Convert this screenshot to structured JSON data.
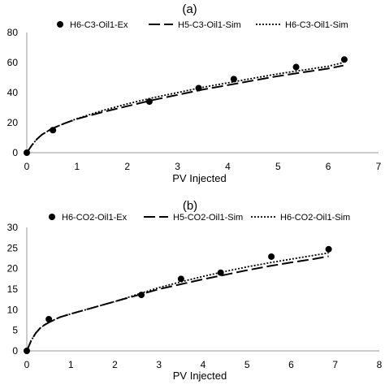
{
  "chart_data": [
    {
      "type": "scatter",
      "panel_label": "(a)",
      "xlabel": "PV Injected",
      "ylabel": "",
      "xlim": [
        0,
        7
      ],
      "ylim": [
        0,
        80
      ],
      "x_ticks": [
        0,
        1,
        2,
        3,
        4,
        5,
        6,
        7
      ],
      "y_ticks": [
        0,
        20,
        40,
        60,
        80
      ],
      "grid": false,
      "legend_position": "top",
      "series": [
        {
          "name": "H6-C3-Oil1-Ex",
          "style": "markers",
          "color": "#000000",
          "x": [
            0,
            0.52,
            2.44,
            3.42,
            4.12,
            5.36,
            6.32
          ],
          "y": [
            0,
            15,
            34,
            43,
            49,
            57,
            62
          ]
        },
        {
          "name": "H5-C3-Oil1-Sim",
          "style": "long-dash",
          "color": "#000000",
          "x": [
            0,
            0.1,
            0.2,
            0.3,
            0.4,
            0.5,
            0.75,
            1.0,
            1.5,
            2.0,
            2.5,
            3.0,
            3.5,
            4.0,
            4.5,
            5.0,
            5.5,
            6.0,
            6.3
          ],
          "y": [
            0,
            5,
            9,
            12,
            14,
            16,
            19.5,
            22.5,
            27,
            31,
            35,
            38.5,
            42,
            45,
            48,
            51,
            53.5,
            56,
            58
          ]
        },
        {
          "name": "H6-C3-Oil1-Sim",
          "style": "dotted",
          "color": "#000000",
          "x": [
            0,
            0.1,
            0.2,
            0.3,
            0.4,
            0.5,
            0.75,
            1.0,
            1.5,
            2.0,
            2.5,
            3.0,
            3.5,
            4.0,
            4.5,
            5.0,
            5.5,
            6.0,
            6.3
          ],
          "y": [
            0,
            5,
            9,
            12,
            14,
            16,
            19.5,
            22.7,
            28,
            32.5,
            36.5,
            40,
            43.5,
            46.5,
            49.5,
            52.5,
            55,
            57.5,
            60
          ]
        }
      ]
    },
    {
      "type": "scatter",
      "panel_label": "(b)",
      "xlabel": "PV Injected",
      "ylabel": "",
      "xlim": [
        0,
        8
      ],
      "ylim": [
        0,
        30
      ],
      "x_ticks": [
        0,
        1,
        2,
        3,
        4,
        5,
        6,
        7,
        8
      ],
      "y_ticks": [
        0,
        5,
        10,
        15,
        20,
        25,
        30
      ],
      "grid": false,
      "legend_position": "top",
      "series": [
        {
          "name": "H6-CO2-Oil1-Ex",
          "style": "markers",
          "color": "#000000",
          "x": [
            0,
            0.5,
            2.6,
            3.5,
            4.4,
            5.55,
            6.85
          ],
          "y": [
            0,
            7.7,
            13.6,
            17.5,
            19,
            22.9,
            24.7
          ]
        },
        {
          "name": "H5-CO2-Oil1-Sim",
          "style": "long-dash",
          "color": "#000000",
          "x": [
            0,
            0.1,
            0.2,
            0.3,
            0.4,
            0.5,
            0.75,
            1.0,
            1.5,
            2.0,
            2.5,
            3.0,
            3.5,
            4.0,
            4.5,
            5.0,
            5.5,
            6.0,
            6.5,
            6.85
          ],
          "y": [
            0,
            2.5,
            4.3,
            5.5,
            6.3,
            6.9,
            8.2,
            9.0,
            10.5,
            12.0,
            13.5,
            15.0,
            16.2,
            17.4,
            18.5,
            19.6,
            20.6,
            21.5,
            22.3,
            23.0
          ]
        },
        {
          "name": "H6-CO2-Oil1-Sim",
          "style": "dotted",
          "color": "#000000",
          "x": [
            0,
            0.1,
            0.2,
            0.3,
            0.4,
            0.5,
            0.75,
            1.0,
            1.5,
            2.0,
            2.5,
            3.0,
            3.5,
            4.0,
            4.5,
            5.0,
            5.5,
            6.0,
            6.5,
            6.85
          ],
          "y": [
            0,
            2.5,
            4.3,
            5.5,
            6.3,
            6.9,
            8.2,
            9.0,
            10.5,
            12.0,
            13.7,
            15.4,
            16.8,
            18.1,
            19.3,
            20.4,
            21.4,
            22.3,
            23.2,
            23.8
          ]
        }
      ]
    }
  ]
}
